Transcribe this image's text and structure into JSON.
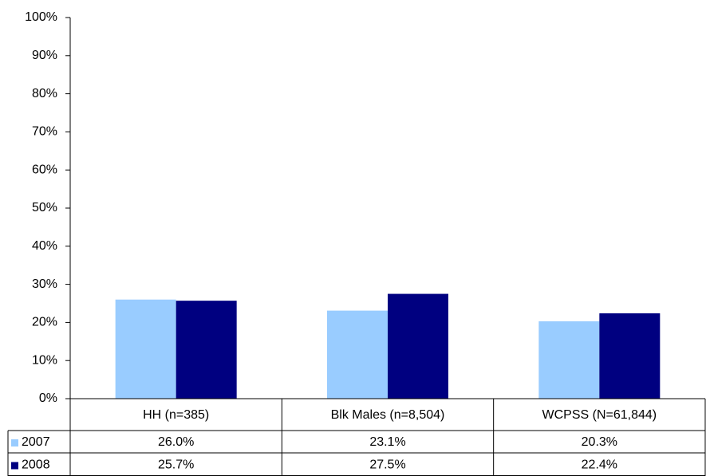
{
  "chart_data": {
    "type": "bar",
    "categories": [
      "HH (n=385)",
      "Blk Males (n=8,504)",
      "WCPSS (N=61,844)"
    ],
    "series": [
      {
        "name": "2007",
        "color": "#99ccff",
        "values": [
          26.0,
          23.1,
          20.3
        ],
        "value_labels": [
          "26.0%",
          "23.1%",
          "20.3%"
        ]
      },
      {
        "name": "2008",
        "color": "#000080",
        "values": [
          25.7,
          27.5,
          22.4
        ],
        "value_labels": [
          "25.7%",
          "27.5%",
          "22.4%"
        ]
      }
    ],
    "ylim": [
      0,
      100
    ],
    "yticks": [
      {
        "value": 0,
        "label": "0%"
      },
      {
        "value": 10,
        "label": "10%"
      },
      {
        "value": 20,
        "label": "20%"
      },
      {
        "value": 30,
        "label": "30%"
      },
      {
        "value": 40,
        "label": "40%"
      },
      {
        "value": 50,
        "label": "50%"
      },
      {
        "value": 60,
        "label": "60%"
      },
      {
        "value": 70,
        "label": "70%"
      },
      {
        "value": 80,
        "label": "80%"
      },
      {
        "value": 90,
        "label": "90%"
      },
      {
        "value": 100,
        "label": "100%"
      }
    ],
    "data_table": true
  }
}
